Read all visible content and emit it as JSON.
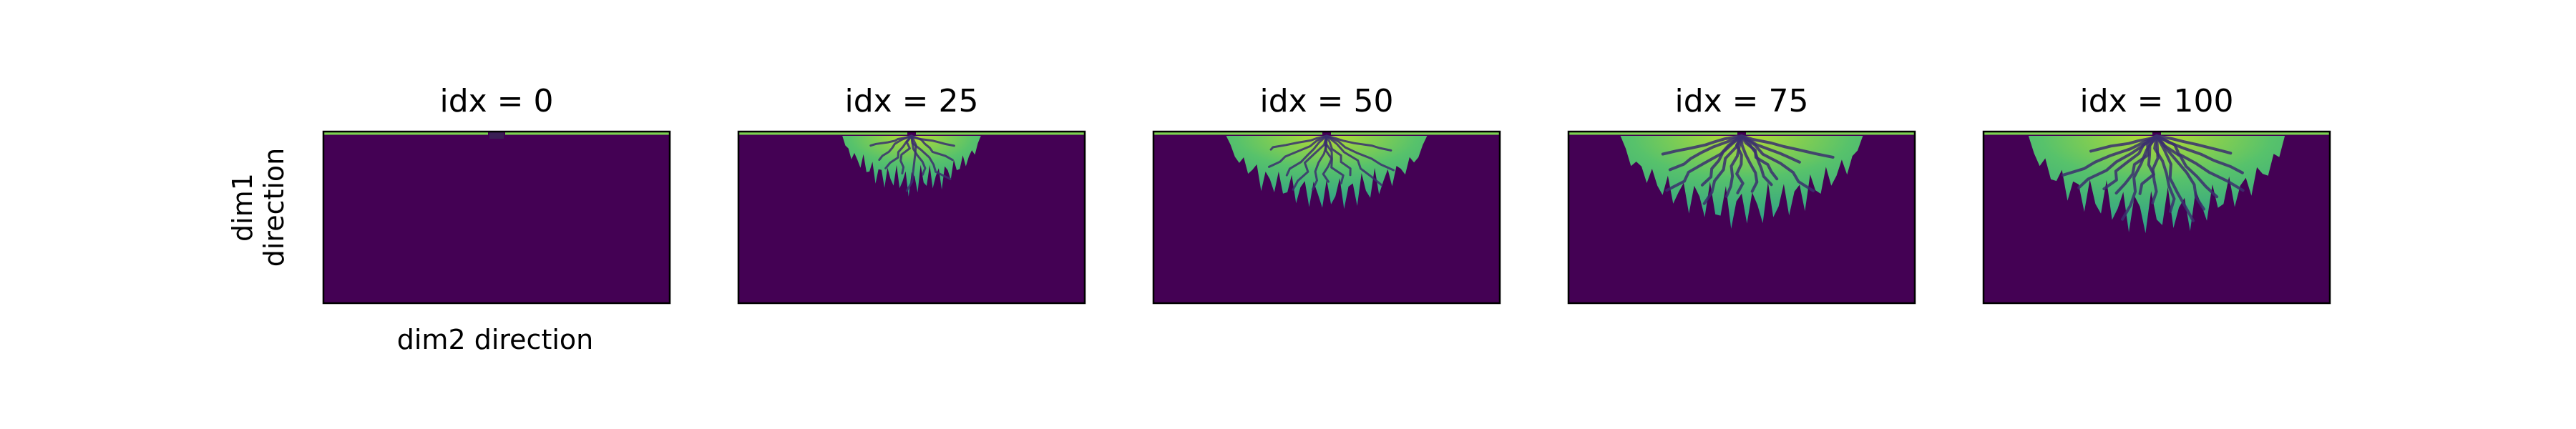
{
  "chart_data": {
    "type": "heatmap",
    "colormap": "viridis",
    "xlabel": "dim2 direction",
    "ylabel": [
      "dim1",
      "direction"
    ],
    "ticks": "none",
    "panels": [
      {
        "title": "idx = 0",
        "idx": 0,
        "front_depth": 0.05,
        "half_width": 0.03
      },
      {
        "title": "idx = 25",
        "idx": 25,
        "front_depth": 0.36,
        "half_width": 0.2
      },
      {
        "title": "idx = 50",
        "idx": 50,
        "front_depth": 0.47,
        "half_width": 0.29
      },
      {
        "title": "idx = 75",
        "idx": 75,
        "front_depth": 0.57,
        "half_width": 0.35
      },
      {
        "title": "idx = 100",
        "idx": 100,
        "front_depth": 0.62,
        "half_width": 0.37
      }
    ],
    "colors": {
      "background": "#440154",
      "inlet_line": "#7bd151",
      "finger_fill_low": "#2a9d8a",
      "finger_fill_mid": "#57c26b",
      "finger_fill_high": "#b6dc32",
      "channel": "#3b2f6e",
      "frame": "#000000"
    }
  }
}
